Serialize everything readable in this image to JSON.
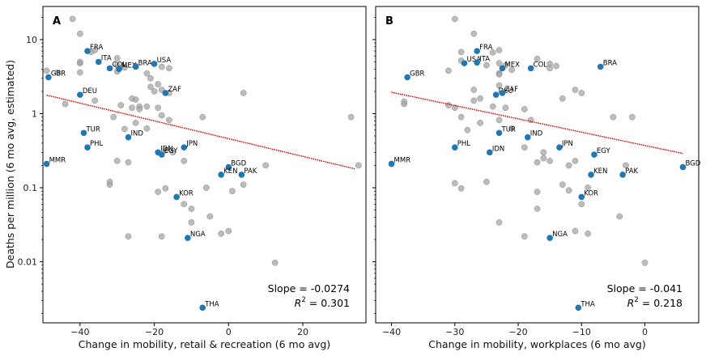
{
  "figure": {
    "ylabel": "Deaths per million (6 mo avg, estimated)"
  },
  "colors": {
    "grey_points": "#a6a6a6",
    "highlight_points": "#1f77b4",
    "fit_line": "#e00000"
  },
  "chart_data": [
    {
      "type": "scatter",
      "panel_label": "A",
      "xlabel": "Change in mobility, retail & recreation (6 mo avg)",
      "ylabel": "Deaths per million (6 mo avg, estimated)",
      "yscale": "log",
      "xlim": [
        -50,
        37
      ],
      "ylim": [
        0.0015,
        28
      ],
      "xticks": [
        -40,
        -20,
        0,
        20
      ],
      "yticks": [
        0.01,
        0.1,
        1,
        10
      ],
      "ytick_labels": [
        "0.01",
        "0.1",
        "1",
        "10"
      ],
      "slope_text": "Slope = -0.0274",
      "r2_text": "R² = 0.301",
      "r2_prefix": "R",
      "r2_sup": "2",
      "r2_value": " = 0.301",
      "fit": {
        "x": [
          -49,
          34
        ],
        "y": [
          1.78,
          0.18
        ]
      },
      "highlighted": [
        {
          "label": "FRA",
          "x": -38,
          "y": 7.0
        },
        {
          "label": "ITA",
          "x": -35,
          "y": 5.0
        },
        {
          "label": "COL",
          "x": -32,
          "y": 4.1
        },
        {
          "label": "MEX",
          "x": -29.5,
          "y": 4.0
        },
        {
          "label": "BRA",
          "x": -25,
          "y": 4.3
        },
        {
          "label": "USA",
          "x": -20,
          "y": 4.7
        },
        {
          "label": "GBR",
          "x": -48.5,
          "y": 3.1
        },
        {
          "label": "DEU",
          "x": -40,
          "y": 1.8
        },
        {
          "label": "ZAF",
          "x": -17,
          "y": 1.9
        },
        {
          "label": "TUR",
          "x": -39,
          "y": 0.55
        },
        {
          "label": "IND",
          "x": -27,
          "y": 0.48
        },
        {
          "label": "PHL",
          "x": -38,
          "y": 0.35
        },
        {
          "label": "IDN",
          "x": -19,
          "y": 0.3
        },
        {
          "label": "EGY",
          "x": -18,
          "y": 0.28
        },
        {
          "label": "JPN",
          "x": -12,
          "y": 0.35
        },
        {
          "label": "MMR",
          "x": -49,
          "y": 0.21
        },
        {
          "label": "BGD",
          "x": 0,
          "y": 0.19
        },
        {
          "label": "KEN",
          "x": -2,
          "y": 0.15
        },
        {
          "label": "PAK",
          "x": 3.5,
          "y": 0.15
        },
        {
          "label": "KOR",
          "x": -14,
          "y": 0.075
        },
        {
          "label": "NGA",
          "x": -11,
          "y": 0.021
        },
        {
          "label": "THA",
          "x": -7,
          "y": 0.0024
        }
      ],
      "grey": [
        [
          -42,
          19
        ],
        [
          -40,
          12
        ],
        [
          -40,
          3.6
        ],
        [
          -40,
          4.8
        ],
        [
          -40,
          5.0
        ],
        [
          -37,
          6.8
        ],
        [
          -36,
          7.2
        ],
        [
          -30,
          4.5
        ],
        [
          -30,
          5.6
        ],
        [
          -30,
          3.7
        ],
        [
          -28,
          4.2
        ],
        [
          -25,
          4.4
        ],
        [
          -18,
          4.3
        ],
        [
          -16,
          4.1
        ],
        [
          -19,
          2.5
        ],
        [
          -22,
          3.5
        ],
        [
          -21,
          3.0
        ],
        [
          -21,
          2.3
        ],
        [
          -20,
          2.0
        ],
        [
          -18,
          2.1
        ],
        [
          -16,
          1.9
        ],
        [
          -36,
          1.5
        ],
        [
          -31,
          0.9
        ],
        [
          -29,
          1.3
        ],
        [
          -26,
          1.6
        ],
        [
          -25,
          1.55
        ],
        [
          -26,
          1.2
        ],
        [
          -24,
          1.25
        ],
        [
          -24,
          1.15
        ],
        [
          -22,
          1.25
        ],
        [
          -19,
          1.2
        ],
        [
          -18,
          0.95
        ],
        [
          -16,
          0.82
        ],
        [
          -25,
          0.75
        ],
        [
          -22,
          0.63
        ],
        [
          -28,
          0.62
        ],
        [
          -30,
          0.23
        ],
        [
          -27,
          0.22
        ],
        [
          -17,
          0.32
        ],
        [
          -15,
          0.3
        ],
        [
          -12,
          0.23
        ],
        [
          -19,
          0.088
        ],
        [
          -17,
          0.098
        ],
        [
          -12,
          0.06
        ],
        [
          -10,
          0.052
        ],
        [
          -6,
          0.1
        ],
        [
          -5,
          0.041
        ],
        [
          -10,
          0.034
        ],
        [
          -18,
          0.022
        ],
        [
          -27,
          0.022
        ],
        [
          -2,
          0.024
        ],
        [
          0,
          0.026
        ],
        [
          1,
          0.09
        ],
        [
          4,
          0.11
        ],
        [
          10,
          0.2
        ],
        [
          -32,
          0.11
        ],
        [
          -32,
          0.12
        ],
        [
          -44,
          1.35
        ],
        [
          -46,
          3.6
        ],
        [
          -49,
          3.8
        ],
        [
          -7,
          0.9
        ],
        [
          4,
          1.9
        ],
        [
          33,
          0.9
        ],
        [
          35,
          0.2
        ],
        [
          12.5,
          0.0097
        ]
      ]
    },
    {
      "type": "scatter",
      "panel_label": "B",
      "xlabel": "Change in mobility, workplaces (6 mo avg)",
      "ylabel": "Deaths per million (6 mo avg, estimated)",
      "yscale": "log",
      "xlim": [
        -42.5,
        8.5
      ],
      "ylim": [
        0.0015,
        28
      ],
      "xticks": [
        -40,
        -30,
        -20,
        -10,
        0
      ],
      "yticks": [
        0.01,
        0.1,
        1,
        10
      ],
      "slope_text": "Slope = -0.041",
      "r2_text": "R² = 0.218",
      "r2_prefix": "R",
      "r2_sup": "2",
      "r2_value": " = 0.218",
      "fit": {
        "x": [
          -40,
          6
        ],
        "y": [
          1.95,
          0.29
        ]
      },
      "highlighted": [
        {
          "label": "FRA",
          "x": -26.5,
          "y": 7.0
        },
        {
          "label": "USA",
          "x": -28.5,
          "y": 4.8
        },
        {
          "label": "ITA",
          "x": -26.5,
          "y": 4.9
        },
        {
          "label": "BRA",
          "x": -7,
          "y": 4.3
        },
        {
          "label": "MEX",
          "x": -22.5,
          "y": 4.1
        },
        {
          "label": "COL",
          "x": -18,
          "y": 4.1
        },
        {
          "label": "GBR",
          "x": -37.5,
          "y": 3.1
        },
        {
          "label": "DEU",
          "x": -23.5,
          "y": 1.8
        },
        {
          "label": "ZAF",
          "x": -22.5,
          "y": 1.9
        },
        {
          "label": "TUR",
          "x": -23,
          "y": 0.55
        },
        {
          "label": "IND",
          "x": -18.5,
          "y": 0.48
        },
        {
          "label": "PHL",
          "x": -30,
          "y": 0.35
        },
        {
          "label": "IDN",
          "x": -24.5,
          "y": 0.3
        },
        {
          "label": "JPN",
          "x": -13.5,
          "y": 0.35
        },
        {
          "label": "EGY",
          "x": -8,
          "y": 0.28
        },
        {
          "label": "MMR",
          "x": -40,
          "y": 0.21
        },
        {
          "label": "BGD",
          "x": 6,
          "y": 0.19
        },
        {
          "label": "KEN",
          "x": -8.5,
          "y": 0.15
        },
        {
          "label": "PAK",
          "x": -3.5,
          "y": 0.15
        },
        {
          "label": "KOR",
          "x": -10,
          "y": 0.075
        },
        {
          "label": "NGA",
          "x": -15,
          "y": 0.021
        },
        {
          "label": "THA",
          "x": -10.5,
          "y": 0.0024
        }
      ],
      "grey": [
        [
          -30,
          19
        ],
        [
          -27,
          12
        ],
        [
          -29,
          6.8
        ],
        [
          -24,
          6.7
        ],
        [
          -23,
          7.2
        ],
        [
          -31,
          3.8
        ],
        [
          -29,
          5.2
        ],
        [
          -25,
          4.5
        ],
        [
          -23,
          4.8
        ],
        [
          -22,
          4.5
        ],
        [
          -21,
          3.9
        ],
        [
          -23,
          3.5
        ],
        [
          -17,
          5.5
        ],
        [
          -15,
          4.7
        ],
        [
          -14,
          4.4
        ],
        [
          -15,
          4.1
        ],
        [
          -23,
          3.4
        ],
        [
          -23,
          2.4
        ],
        [
          -27,
          2.1
        ],
        [
          -26,
          1.6
        ],
        [
          -24,
          1.25
        ],
        [
          -22,
          1.2
        ],
        [
          -19,
          1.15
        ],
        [
          -13,
          1.6
        ],
        [
          -11,
          2.1
        ],
        [
          -10,
          1.9
        ],
        [
          -27,
          1.5
        ],
        [
          -30,
          1.2
        ],
        [
          -31,
          1.3
        ],
        [
          -29,
          0.9
        ],
        [
          -28,
          0.6
        ],
        [
          -26,
          0.75
        ],
        [
          -23,
          0.82
        ],
        [
          -21,
          0.63
        ],
        [
          -18,
          0.82
        ],
        [
          -16,
          0.3
        ],
        [
          -17,
          0.22
        ],
        [
          -15,
          0.23
        ],
        [
          -12,
          0.2
        ],
        [
          -11,
          0.23
        ],
        [
          -16,
          0.25
        ],
        [
          -19,
          0.35
        ],
        [
          -17,
          0.088
        ],
        [
          -13,
          0.11
        ],
        [
          -12,
          0.092
        ],
        [
          -9,
          0.1
        ],
        [
          -10,
          0.06
        ],
        [
          -17,
          0.052
        ],
        [
          -23,
          0.034
        ],
        [
          -19,
          0.022
        ],
        [
          -11,
          0.026
        ],
        [
          -9,
          0.024
        ],
        [
          -25,
          0.12
        ],
        [
          -29,
          0.098
        ],
        [
          -30,
          0.115
        ],
        [
          -4,
          0.041
        ],
        [
          -3,
          0.2
        ],
        [
          -5,
          0.9
        ],
        [
          -2,
          0.9
        ],
        [
          -38,
          1.35
        ],
        [
          -38,
          1.45
        ],
        [
          -40,
          0.21
        ],
        [
          0,
          0.0097
        ]
      ]
    }
  ]
}
